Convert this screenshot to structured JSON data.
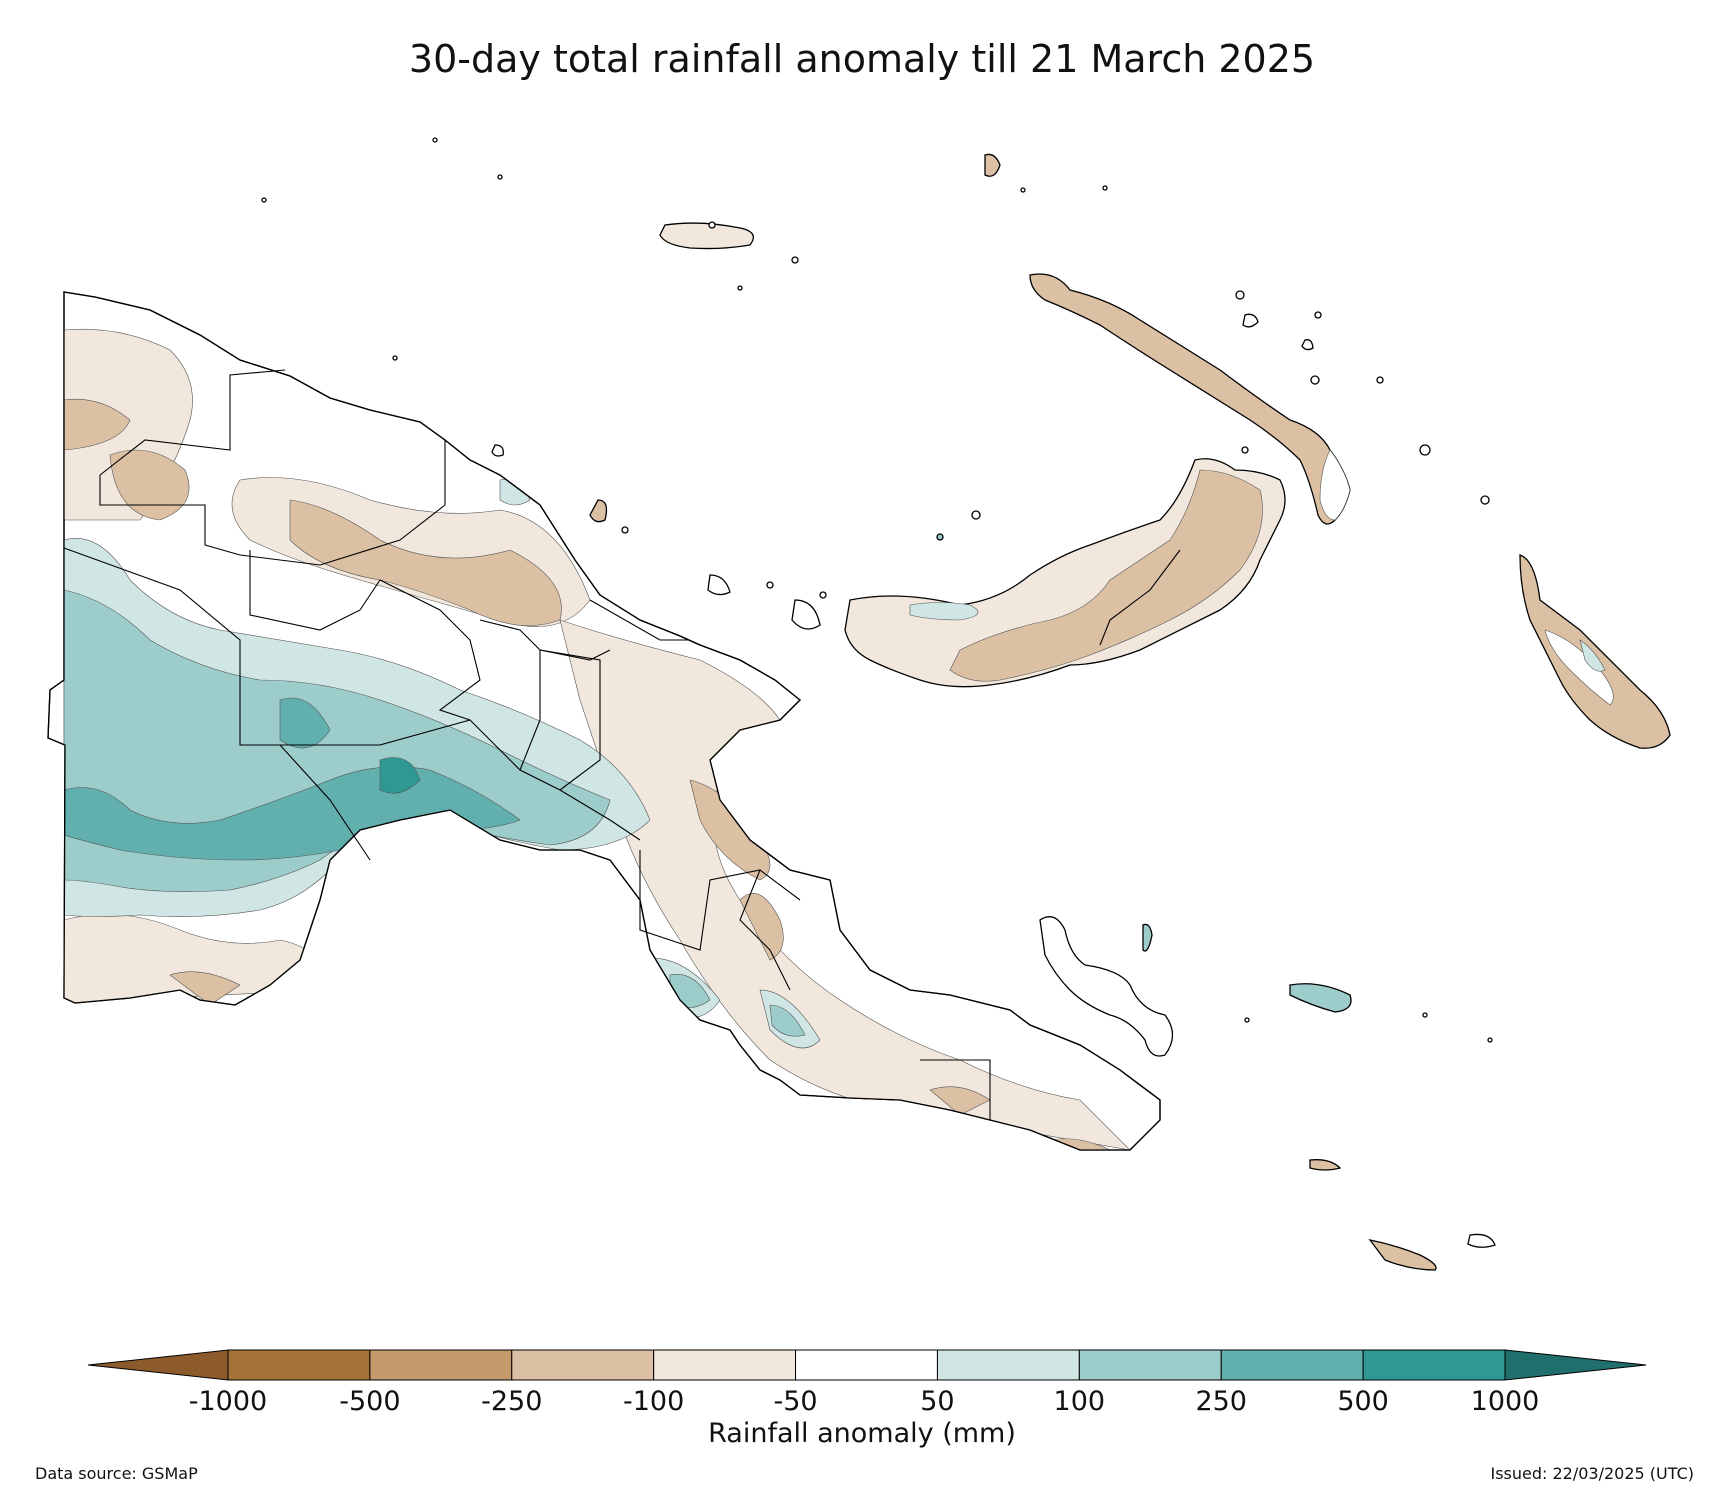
{
  "title": "30-day total rainfall anomaly till 21 March 2025",
  "colorbar": {
    "label": "Rainfall anomaly (mm)",
    "ticks": [
      "-1000",
      "-500",
      "-250",
      "-100",
      "-50",
      "50",
      "100",
      "250",
      "500",
      "1000"
    ],
    "bins": [
      {
        "range": "< -1000",
        "color": "#8c5a2b"
      },
      {
        "range": "-1000 to -500",
        "color": "#a8733a"
      },
      {
        "range": "-500 to -250",
        "color": "#c49a6c"
      },
      {
        "range": "-250 to -100",
        "color": "#dbc0a4"
      },
      {
        "range": "-100 to -50",
        "color": "#f1e7dd"
      },
      {
        "range": "-50 to 50",
        "color": "#ffffff"
      },
      {
        "range": "50 to 100",
        "color": "#cfe6e4"
      },
      {
        "range": "100 to 250",
        "color": "#9ccdcb"
      },
      {
        "range": "250 to 500",
        "color": "#62b0ae"
      },
      {
        "range": "500 to 1000",
        "color": "#2f9893"
      },
      {
        "range": "> 1000",
        "color": "#216f6c"
      }
    ]
  },
  "footer": {
    "source": "Data source: GSMaP",
    "issued": "Issued: 22/03/2025 (UTC)"
  }
}
